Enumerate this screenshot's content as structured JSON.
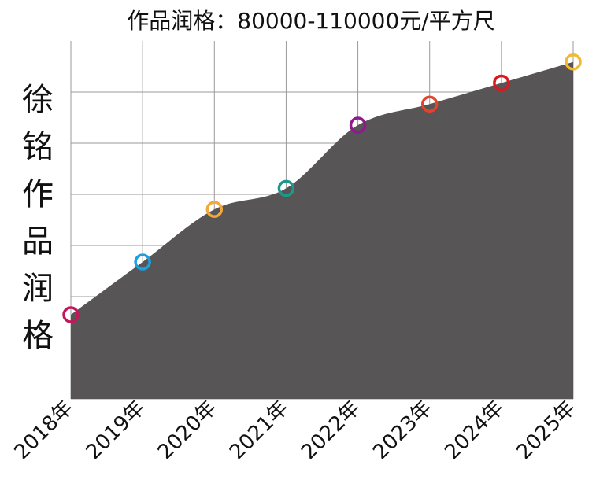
{
  "chart_data": {
    "type": "area",
    "title": "作品润格：80000-110000元/平方尺",
    "ylabel": "徐铭作品润格",
    "xlabel": "",
    "categories": [
      "2018年",
      "2019年",
      "2020年",
      "2021年",
      "2022年",
      "2023年",
      "2024年",
      "2025年"
    ],
    "values": [
      80000,
      85000,
      90000,
      92000,
      98000,
      100000,
      102000,
      104000
    ],
    "ylim": [
      72000,
      106000
    ],
    "grid": true,
    "fill_color": "#575555",
    "marker_colors": [
      "#c2185b",
      "#1ea0e0",
      "#f2a83a",
      "#1a9a8a",
      "#8e1a8e",
      "#e2452e",
      "#d81a20",
      "#f2b830"
    ]
  }
}
